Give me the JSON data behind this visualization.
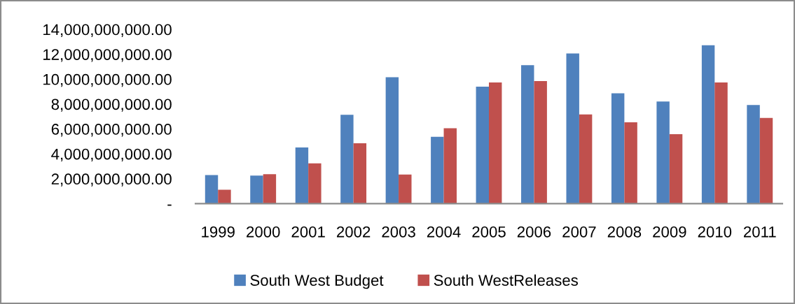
{
  "chart_data": {
    "type": "bar",
    "categories": [
      "1999",
      "2000",
      "2001",
      "2002",
      "2003",
      "2004",
      "2005",
      "2006",
      "2007",
      "2008",
      "2009",
      "2010",
      "2011"
    ],
    "series": [
      {
        "name": "South West Budget",
        "color": "#4f81bd",
        "values": [
          2290000000,
          2250000000,
          4510000000,
          7140000000,
          10150000000,
          5370000000,
          9400000000,
          11130000000,
          12070000000,
          8870000000,
          8210000000,
          12720000000,
          7930000000
        ]
      },
      {
        "name": "South WestReleases",
        "color": "#c0504d",
        "values": [
          1120000000,
          2370000000,
          3230000000,
          4850000000,
          2340000000,
          6050000000,
          9740000000,
          9850000000,
          7160000000,
          6540000000,
          5580000000,
          9740000000,
          6880000000
        ]
      }
    ],
    "ylim": [
      0,
      14000000000
    ],
    "yticks": [
      {
        "value": 0,
        "label": "-"
      },
      {
        "value": 2000000000,
        "label": "2,000,000,000.00"
      },
      {
        "value": 4000000000,
        "label": "4,000,000,000.00"
      },
      {
        "value": 6000000000,
        "label": "6,000,000,000.00"
      },
      {
        "value": 8000000000,
        "label": "8,000,000,000.00"
      },
      {
        "value": 10000000000,
        "label": "10,000,000,000.00"
      },
      {
        "value": 12000000000,
        "label": "12,000,000,000.00"
      },
      {
        "value": 14000000000,
        "label": "14,000,000,000.00"
      }
    ],
    "legend": "bottom"
  }
}
